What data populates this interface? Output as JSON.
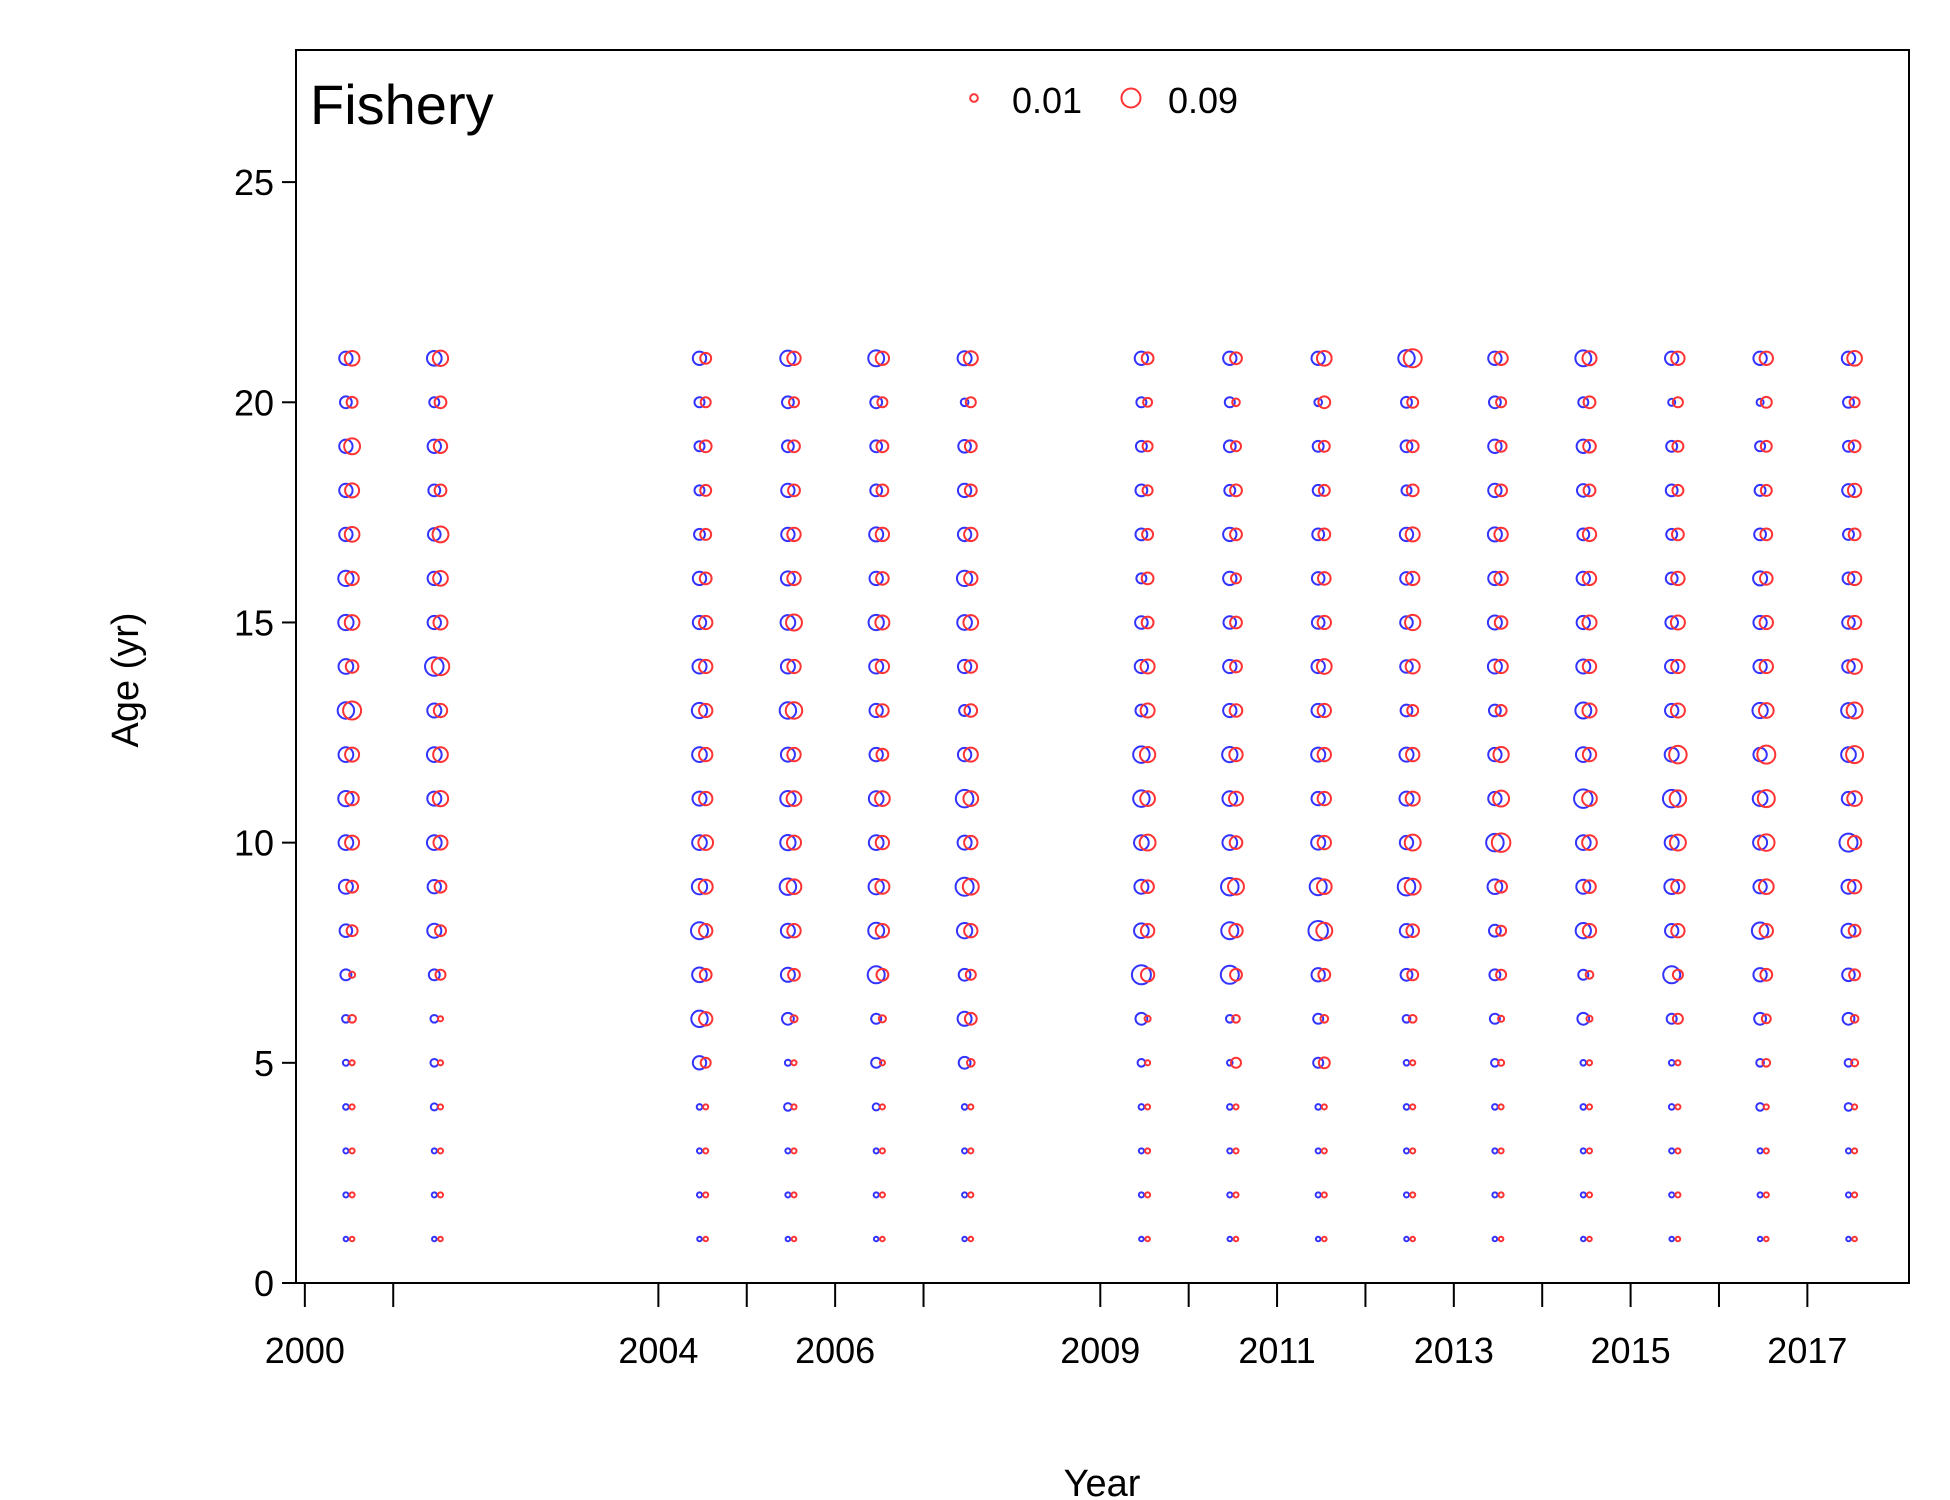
{
  "chart_data": {
    "type": "scatter",
    "title": "Fishery",
    "xlabel": "Year",
    "ylabel": "Age (yr)",
    "xlim": [
      1999.9,
      2018.15
    ],
    "ylim": [
      0,
      28
    ],
    "x_ticks": [
      2000,
      2001,
      2004,
      2005,
      2006,
      2007,
      2009,
      2010,
      2011,
      2012,
      2013,
      2014,
      2015,
      2016,
      2017
    ],
    "x_tick_labels": [
      "2000",
      "2004",
      "2006",
      "2009",
      "2011",
      "2013",
      "2015",
      "2017"
    ],
    "y_ticks": [
      0,
      5,
      10,
      15,
      20,
      25
    ],
    "y_tick_labels": [
      "0",
      "5",
      "10",
      "15",
      "20",
      "25"
    ],
    "legend": {
      "position": "top-center",
      "entries": [
        {
          "label": "0.01",
          "value": 0.01
        },
        {
          "label": "0.09",
          "value": 0.09
        }
      ]
    },
    "colors": {
      "series_a": "#3333ff",
      "series_b": "#ff3333"
    },
    "years": [
      2000,
      2001,
      2004,
      2005,
      2006,
      2007,
      2009,
      2010,
      2011,
      2012,
      2013,
      2014,
      2015,
      2016,
      2017
    ],
    "ages": [
      1,
      2,
      3,
      4,
      5,
      6,
      7,
      8,
      9,
      10,
      11,
      12,
      13,
      14,
      15,
      16,
      17,
      18,
      19,
      20,
      21
    ],
    "series": [
      {
        "color": "#3333ff",
        "values": [
          [
            0.002,
            0.003,
            0.003,
            0.004,
            0.005,
            0.01,
            0.025,
            0.035,
            0.045,
            0.05,
            0.055,
            0.05,
            0.065,
            0.05,
            0.055,
            0.055,
            0.04,
            0.04,
            0.04,
            0.03,
            0.04
          ],
          [
            0.002,
            0.003,
            0.003,
            0.008,
            0.01,
            0.01,
            0.025,
            0.045,
            0.04,
            0.05,
            0.045,
            0.05,
            0.045,
            0.085,
            0.04,
            0.04,
            0.035,
            0.03,
            0.04,
            0.02,
            0.05
          ],
          [
            0.002,
            0.003,
            0.003,
            0.004,
            0.04,
            0.065,
            0.05,
            0.07,
            0.055,
            0.05,
            0.045,
            0.05,
            0.055,
            0.045,
            0.04,
            0.04,
            0.025,
            0.02,
            0.02,
            0.02,
            0.04
          ],
          [
            0.002,
            0.003,
            0.003,
            0.01,
            0.005,
            0.03,
            0.045,
            0.045,
            0.065,
            0.055,
            0.055,
            0.045,
            0.065,
            0.045,
            0.05,
            0.045,
            0.04,
            0.04,
            0.03,
            0.03,
            0.055
          ],
          [
            0.002,
            0.003,
            0.003,
            0.008,
            0.02,
            0.02,
            0.07,
            0.06,
            0.055,
            0.05,
            0.05,
            0.04,
            0.04,
            0.045,
            0.055,
            0.04,
            0.045,
            0.03,
            0.03,
            0.03,
            0.06
          ],
          [
            0.002,
            0.003,
            0.003,
            0.004,
            0.03,
            0.045,
            0.03,
            0.055,
            0.08,
            0.045,
            0.075,
            0.04,
            0.025,
            0.04,
            0.05,
            0.055,
            0.04,
            0.04,
            0.035,
            0.01,
            0.045
          ],
          [
            0.002,
            0.003,
            0.003,
            0.004,
            0.01,
            0.03,
            0.09,
            0.05,
            0.045,
            0.05,
            0.065,
            0.065,
            0.03,
            0.04,
            0.035,
            0.02,
            0.03,
            0.03,
            0.025,
            0.02,
            0.04
          ],
          [
            0.002,
            0.003,
            0.003,
            0.004,
            0.004,
            0.01,
            0.08,
            0.07,
            0.075,
            0.05,
            0.05,
            0.055,
            0.04,
            0.04,
            0.035,
            0.04,
            0.04,
            0.025,
            0.03,
            0.02,
            0.04
          ],
          [
            0.002,
            0.003,
            0.003,
            0.004,
            0.02,
            0.02,
            0.04,
            0.095,
            0.07,
            0.045,
            0.04,
            0.045,
            0.04,
            0.04,
            0.035,
            0.035,
            0.03,
            0.025,
            0.025,
            0.01,
            0.04
          ],
          [
            0.002,
            0.003,
            0.003,
            0.004,
            0.004,
            0.01,
            0.03,
            0.04,
            0.075,
            0.04,
            0.045,
            0.045,
            0.03,
            0.035,
            0.035,
            0.035,
            0.04,
            0.02,
            0.03,
            0.025,
            0.065
          ],
          [
            0.002,
            0.003,
            0.003,
            0.004,
            0.01,
            0.02,
            0.025,
            0.03,
            0.05,
            0.075,
            0.04,
            0.04,
            0.03,
            0.045,
            0.045,
            0.04,
            0.045,
            0.04,
            0.04,
            0.03,
            0.04
          ],
          [
            0.002,
            0.003,
            0.003,
            0.004,
            0.004,
            0.03,
            0.02,
            0.055,
            0.045,
            0.05,
            0.085,
            0.05,
            0.06,
            0.045,
            0.04,
            0.04,
            0.03,
            0.035,
            0.04,
            0.02,
            0.06
          ],
          [
            0.002,
            0.003,
            0.003,
            0.004,
            0.004,
            0.02,
            0.07,
            0.04,
            0.05,
            0.045,
            0.075,
            0.045,
            0.04,
            0.04,
            0.035,
            0.03,
            0.025,
            0.03,
            0.025,
            0.008,
            0.04
          ],
          [
            0.002,
            0.003,
            0.003,
            0.01,
            0.01,
            0.03,
            0.04,
            0.065,
            0.04,
            0.045,
            0.05,
            0.04,
            0.055,
            0.04,
            0.04,
            0.045,
            0.03,
            0.025,
            0.02,
            0.008,
            0.04
          ],
          [
            0.002,
            0.003,
            0.003,
            0.01,
            0.01,
            0.03,
            0.035,
            0.045,
            0.045,
            0.08,
            0.04,
            0.05,
            0.05,
            0.035,
            0.035,
            0.03,
            0.025,
            0.035,
            0.025,
            0.025,
            0.04
          ]
        ]
      },
      {
        "color": "#ff3333",
        "values": [
          [
            0.002,
            0.003,
            0.003,
            0.003,
            0.003,
            0.01,
            0.005,
            0.025,
            0.03,
            0.045,
            0.04,
            0.045,
            0.08,
            0.035,
            0.05,
            0.04,
            0.05,
            0.045,
            0.06,
            0.025,
            0.05
          ],
          [
            0.002,
            0.003,
            0.003,
            0.003,
            0.003,
            0.003,
            0.02,
            0.025,
            0.03,
            0.045,
            0.055,
            0.05,
            0.04,
            0.075,
            0.045,
            0.05,
            0.06,
            0.03,
            0.04,
            0.03,
            0.055
          ],
          [
            0.002,
            0.003,
            0.003,
            0.003,
            0.02,
            0.04,
            0.03,
            0.04,
            0.045,
            0.05,
            0.04,
            0.04,
            0.04,
            0.04,
            0.04,
            0.03,
            0.025,
            0.025,
            0.03,
            0.02,
            0.025
          ],
          [
            0.002,
            0.003,
            0.003,
            0.003,
            0.003,
            0.008,
            0.03,
            0.04,
            0.05,
            0.045,
            0.05,
            0.04,
            0.065,
            0.04,
            0.06,
            0.04,
            0.04,
            0.03,
            0.03,
            0.02,
            0.04
          ],
          [
            0.002,
            0.003,
            0.003,
            0.003,
            0.003,
            0.008,
            0.03,
            0.04,
            0.045,
            0.04,
            0.05,
            0.03,
            0.035,
            0.04,
            0.045,
            0.035,
            0.04,
            0.03,
            0.03,
            0.02,
            0.04
          ],
          [
            0.002,
            0.003,
            0.003,
            0.003,
            0.01,
            0.03,
            0.02,
            0.04,
            0.06,
            0.04,
            0.05,
            0.045,
            0.035,
            0.035,
            0.05,
            0.04,
            0.04,
            0.03,
            0.03,
            0.02,
            0.045
          ],
          [
            0.002,
            0.003,
            0.003,
            0.003,
            0.003,
            0.005,
            0.04,
            0.04,
            0.035,
            0.06,
            0.05,
            0.055,
            0.045,
            0.045,
            0.03,
            0.03,
            0.025,
            0.02,
            0.02,
            0.015,
            0.03
          ],
          [
            0.002,
            0.003,
            0.003,
            0.003,
            0.02,
            0.01,
            0.03,
            0.04,
            0.06,
            0.035,
            0.045,
            0.04,
            0.035,
            0.03,
            0.03,
            0.02,
            0.03,
            0.03,
            0.02,
            0.01,
            0.03
          ],
          [
            0.002,
            0.003,
            0.003,
            0.003,
            0.025,
            0.01,
            0.03,
            0.06,
            0.05,
            0.04,
            0.04,
            0.04,
            0.04,
            0.05,
            0.04,
            0.035,
            0.03,
            0.025,
            0.025,
            0.03,
            0.05
          ],
          [
            0.002,
            0.003,
            0.003,
            0.003,
            0.003,
            0.01,
            0.025,
            0.035,
            0.06,
            0.06,
            0.045,
            0.04,
            0.025,
            0.045,
            0.055,
            0.04,
            0.045,
            0.03,
            0.03,
            0.025,
            0.08
          ],
          [
            0.002,
            0.003,
            0.003,
            0.003,
            0.005,
            0.005,
            0.02,
            0.02,
            0.03,
            0.085,
            0.06,
            0.055,
            0.025,
            0.04,
            0.035,
            0.04,
            0.04,
            0.03,
            0.025,
            0.02,
            0.04
          ],
          [
            0.002,
            0.003,
            0.003,
            0.003,
            0.003,
            0.005,
            0.01,
            0.04,
            0.035,
            0.05,
            0.05,
            0.04,
            0.045,
            0.04,
            0.045,
            0.04,
            0.04,
            0.03,
            0.035,
            0.03,
            0.045
          ],
          [
            0.002,
            0.003,
            0.003,
            0.003,
            0.003,
            0.02,
            0.02,
            0.04,
            0.04,
            0.06,
            0.065,
            0.075,
            0.045,
            0.04,
            0.045,
            0.04,
            0.03,
            0.025,
            0.025,
            0.02,
            0.04
          ],
          [
            0.002,
            0.003,
            0.003,
            0.003,
            0.01,
            0.015,
            0.03,
            0.04,
            0.05,
            0.065,
            0.07,
            0.08,
            0.05,
            0.04,
            0.04,
            0.035,
            0.03,
            0.025,
            0.025,
            0.025,
            0.04
          ],
          [
            0.002,
            0.003,
            0.003,
            0.003,
            0.008,
            0.01,
            0.025,
            0.03,
            0.04,
            0.04,
            0.05,
            0.07,
            0.06,
            0.05,
            0.04,
            0.04,
            0.03,
            0.04,
            0.03,
            0.02,
            0.05
          ]
        ]
      }
    ]
  }
}
